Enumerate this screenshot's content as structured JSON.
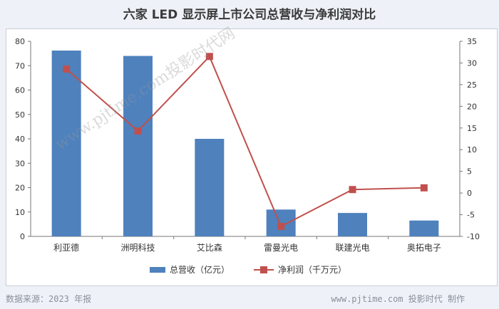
{
  "chart_data": {
    "type": "bar",
    "title": "六家 LED 显示屏上市公司总营收与净利润对比",
    "categories": [
      "利亚德",
      "洲明科技",
      "艾比森",
      "雷曼光电",
      "联建光电",
      "奥拓电子"
    ],
    "series": [
      {
        "name": "总营收（亿元）",
        "type": "bar",
        "axis": "left",
        "color": "#4f81bd",
        "values": [
          76.2,
          74.0,
          40.0,
          11.0,
          9.6,
          6.5
        ]
      },
      {
        "name": "净利润（千万元）",
        "type": "line",
        "axis": "right",
        "color": "#c0504d",
        "values": [
          28.6,
          14.3,
          31.5,
          -7.7,
          0.8,
          1.2
        ]
      }
    ],
    "y_left": {
      "ylim": [
        0,
        80
      ],
      "ticks": [
        0,
        10,
        20,
        30,
        40,
        50,
        60,
        70,
        80
      ]
    },
    "y_right": {
      "ylim": [
        -10,
        35
      ],
      "ticks": [
        -10,
        -5,
        0,
        5,
        10,
        15,
        20,
        25,
        30,
        35
      ]
    },
    "grid": false,
    "legend_position": "bottom"
  },
  "footer": {
    "source": "数据来源：2023 年报",
    "credit": "www.pjtime.com 投影时代 制作"
  },
  "watermark": "www.pjtime.com投影时代网"
}
